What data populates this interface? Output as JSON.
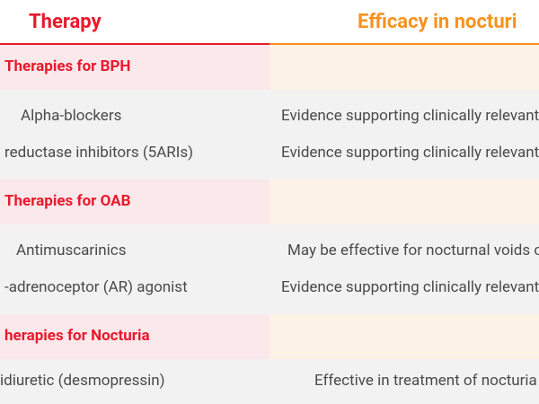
{
  "header": {
    "therapy": "Therapy",
    "efficacy": "Efficacy in nocturi"
  },
  "rows": [
    {
      "section": "Therapies for BPH"
    },
    {
      "therapy": "Alpha-blockers",
      "efficacy": "Evidence supporting clinically relevant"
    },
    {
      "therapy": "reductase inhibitors (5ARIs)",
      "efficacy": "Evidence supporting clinically relevant"
    },
    {
      "section": "Therapies for OAB"
    },
    {
      "therapy": "Antimuscarinics",
      "efficacy": "May be effective for nocturnal voids c"
    },
    {
      "therapy": "-adrenoceptor (AR) agonist",
      "efficacy": "Evidence supporting clinically relevant"
    },
    {
      "section": "herapies for Nocturia"
    },
    {
      "therapy": "idiuretic (desmopressin)",
      "efficacy": "Effective in treatment of nocturia"
    }
  ]
}
